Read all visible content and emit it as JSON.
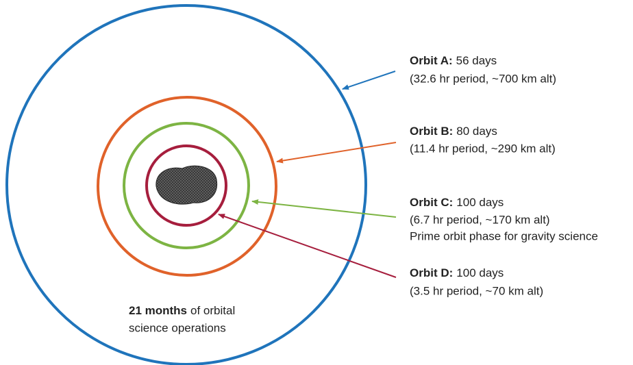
{
  "orbits": [
    {
      "name": "Orbit A:",
      "duration": "56 days",
      "detail": "(32.6 hr period, ~700 km alt)"
    },
    {
      "name": "Orbit B:",
      "duration": "80 days",
      "detail": "(11.4 hr period, ~290 km alt)"
    },
    {
      "name": "Orbit C:",
      "duration": "100 days",
      "detail": "(6.7 hr period, ~170 km alt)",
      "note": "Prime orbit phase for gravity science"
    },
    {
      "name": "Orbit D:",
      "duration": "100 days",
      "detail": "(3.5 hr period, ~70 km alt)"
    }
  ],
  "summary": {
    "bold": "21 months",
    "text": "of orbital",
    "line2": "science operations"
  }
}
